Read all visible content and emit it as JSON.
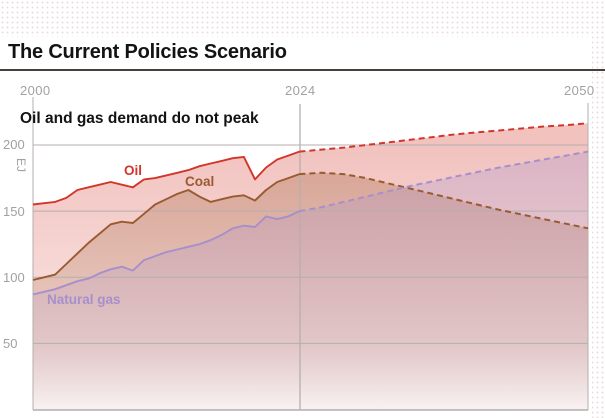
{
  "page": {
    "title": "The Current Policies Scenario",
    "subtitle": "Oil and gas demand do not peak"
  },
  "chart_data": {
    "type": "area",
    "title": "The Current Policies Scenario",
    "subtitle": "Oil and gas demand do not peak",
    "ylabel": "EJ",
    "xlabel": "",
    "xlim": [
      2000,
      2050
    ],
    "ylim": [
      0,
      230
    ],
    "x_ticks": [
      "2000",
      "2024",
      "2050"
    ],
    "y_ticks": [
      200,
      150,
      100,
      50
    ],
    "grid": true,
    "legend_position": "inline-labels",
    "history_end_year": 2024,
    "projection_style": "dashed",
    "series": [
      {
        "name": "Oil",
        "color": "#d23529",
        "fill_opacity": 0.3,
        "history": {
          "years": [
            2000,
            2001,
            2002,
            2003,
            2004,
            2005,
            2006,
            2007,
            2008,
            2009,
            2010,
            2011,
            2012,
            2013,
            2014,
            2015,
            2016,
            2017,
            2018,
            2019,
            2020,
            2021,
            2022,
            2023,
            2024
          ],
          "values": [
            155,
            156,
            157,
            160,
            166,
            168,
            170,
            172,
            170,
            168,
            174,
            175,
            177,
            179,
            181,
            184,
            186,
            188,
            190,
            191,
            174,
            183,
            189,
            192,
            195
          ]
        },
        "projection": {
          "years": [
            2024,
            2026,
            2028,
            2030,
            2032,
            2034,
            2036,
            2038,
            2040,
            2042,
            2044,
            2046,
            2048,
            2050
          ],
          "values": [
            195,
            196.5,
            198,
            200,
            202,
            204,
            206,
            208,
            209.5,
            211,
            212.5,
            214,
            215,
            216.5
          ]
        }
      },
      {
        "name": "Coal",
        "color": "#9a5a31",
        "fill_opacity": 0.32,
        "history": {
          "years": [
            2000,
            2001,
            2002,
            2003,
            2004,
            2005,
            2006,
            2007,
            2008,
            2009,
            2010,
            2011,
            2012,
            2013,
            2014,
            2015,
            2016,
            2017,
            2018,
            2019,
            2020,
            2021,
            2022,
            2023,
            2024
          ],
          "values": [
            98,
            100,
            102,
            110,
            118,
            126,
            133,
            140,
            142,
            141,
            148,
            155,
            159,
            163,
            166,
            161,
            157,
            159,
            161,
            162,
            158,
            166,
            172,
            175,
            178
          ]
        },
        "projection": {
          "years": [
            2024,
            2026,
            2028,
            2030,
            2032,
            2034,
            2036,
            2038,
            2040,
            2042,
            2044,
            2046,
            2048,
            2050
          ],
          "values": [
            178,
            179,
            178,
            175,
            171,
            167,
            163,
            159,
            155,
            151,
            147.5,
            144,
            140.5,
            137
          ]
        }
      },
      {
        "name": "Natural gas",
        "color": "#a78fcb",
        "fill_opacity": 0.3,
        "history": {
          "years": [
            2000,
            2001,
            2002,
            2003,
            2004,
            2005,
            2006,
            2007,
            2008,
            2009,
            2010,
            2011,
            2012,
            2013,
            2014,
            2015,
            2016,
            2017,
            2018,
            2019,
            2020,
            2021,
            2022,
            2023,
            2024
          ],
          "values": [
            87,
            89,
            91,
            94,
            97,
            99,
            103,
            106,
            108,
            105,
            113,
            116,
            119,
            121,
            123,
            125,
            128,
            132,
            137,
            139,
            138,
            146,
            144,
            146,
            150
          ]
        },
        "projection": {
          "years": [
            2024,
            2026,
            2028,
            2030,
            2032,
            2034,
            2036,
            2038,
            2040,
            2042,
            2044,
            2046,
            2048,
            2050
          ],
          "values": [
            150,
            153,
            157,
            161,
            165,
            169,
            172.5,
            176,
            179.5,
            183,
            186,
            189,
            192,
            195
          ]
        }
      }
    ],
    "colors": {
      "gridline": "#b5afad",
      "axis_line": "#a49e9b",
      "tick_label": "#a3a1a0",
      "title_text": "#131313",
      "title_rule": "#46403c"
    }
  }
}
